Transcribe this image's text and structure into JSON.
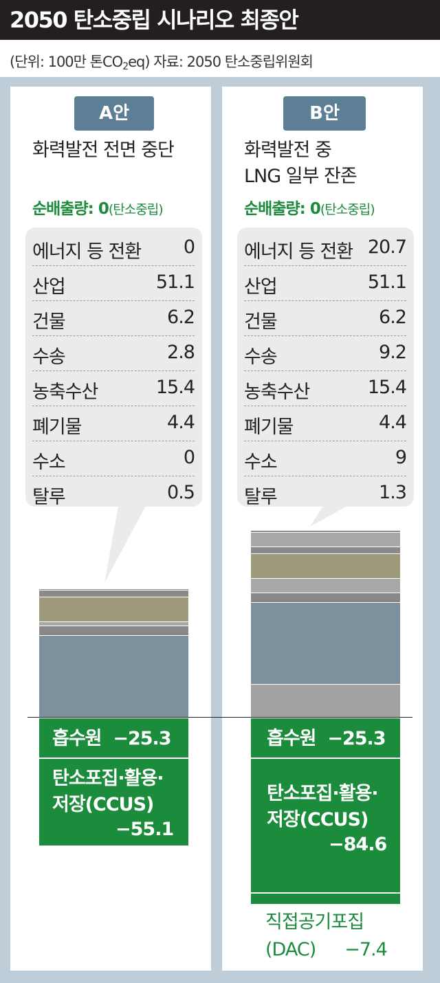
{
  "header": {
    "title": "2050 탄소중립 시나리오 최종안"
  },
  "unit_line": {
    "prefix": "(단위: 100만 톤CO",
    "sub": "2",
    "suffix": "eq)  자료: 2050 탄소중립위원회"
  },
  "scenarios": [
    {
      "badge": "A안",
      "desc_lines": [
        "화력발전 전면 중단"
      ],
      "net_label": "순배출량: 0",
      "net_note": "(탄소중립)",
      "rows": [
        {
          "label": "에너지 등 전환",
          "value": "0"
        },
        {
          "label": "산업",
          "value": "51.1"
        },
        {
          "label": "건물",
          "value": "6.2"
        },
        {
          "label": "수송",
          "value": "2.8"
        },
        {
          "label": "농축수산",
          "value": "15.4"
        },
        {
          "label": "폐기물",
          "value": "4.4"
        },
        {
          "label": "수소",
          "value": "0"
        },
        {
          "label": "탈루",
          "value": "0.5"
        }
      ],
      "absorb": {
        "label": "흡수원",
        "value": "−25.3"
      },
      "ccus": {
        "line1": "탄소포집·활용·",
        "line2": "저장(CCUS)",
        "value": "−55.1"
      }
    },
    {
      "badge": "B안",
      "desc_lines": [
        "화력발전 중",
        "LNG 일부 잔존"
      ],
      "net_label": "순배출량: 0",
      "net_note": "(탄소중립)",
      "rows": [
        {
          "label": "에너지 등 전환",
          "value": "20.7"
        },
        {
          "label": "산업",
          "value": "51.1"
        },
        {
          "label": "건물",
          "value": "6.2"
        },
        {
          "label": "수송",
          "value": "9.2"
        },
        {
          "label": "농축수산",
          "value": "15.4"
        },
        {
          "label": "폐기물",
          "value": "4.4"
        },
        {
          "label": "수소",
          "value": "9"
        },
        {
          "label": "탈루",
          "value": "1.3"
        }
      ],
      "absorb": {
        "label": "흡수원",
        "value": "−25.3"
      },
      "ccus": {
        "line1": "탄소포집·활용·",
        "line2": "저장(CCUS)",
        "value": "−84.6"
      },
      "dac": {
        "line1": "직접공기포집",
        "line2_label": "(DAC)",
        "line2_value": "−7.4"
      }
    }
  ],
  "chart_data": {
    "type": "bar",
    "stacked": true,
    "categories": [
      "A안",
      "B안"
    ],
    "series": [
      {
        "name": "에너지 등 전환",
        "values": [
          0,
          20.7
        ]
      },
      {
        "name": "산업",
        "values": [
          51.1,
          51.1
        ]
      },
      {
        "name": "건물",
        "values": [
          6.2,
          6.2
        ]
      },
      {
        "name": "수송",
        "values": [
          2.8,
          9.2
        ]
      },
      {
        "name": "농축수산",
        "values": [
          15.4,
          15.4
        ]
      },
      {
        "name": "폐기물",
        "values": [
          4.4,
          4.4
        ]
      },
      {
        "name": "수소",
        "values": [
          0,
          9
        ]
      },
      {
        "name": "탈루",
        "values": [
          0.5,
          1.3
        ]
      },
      {
        "name": "흡수원",
        "values": [
          -25.3,
          -25.3
        ]
      },
      {
        "name": "탄소포집·활용·저장(CCUS)",
        "values": [
          -55.1,
          -84.6
        ]
      },
      {
        "name": "직접공기포집(DAC)",
        "values": [
          0,
          -7.4
        ]
      }
    ],
    "colors": {
      "에너지 등 전환": "#a2a2a2",
      "산업": "#7b929e",
      "건물": "#888888",
      "수송": "#a8a8a8",
      "농축수산": "#9f9a7b",
      "폐기물": "#8a8a8a",
      "수소": "#a8a8a8",
      "탈루": "#8a8a8a",
      "흡수원": "#1b8c3b",
      "탄소포집·활용·저장(CCUS)": "#1b8c3b",
      "직접공기포집(DAC)": "#1b8c3b"
    },
    "ylabel": "",
    "xlabel": ""
  }
}
